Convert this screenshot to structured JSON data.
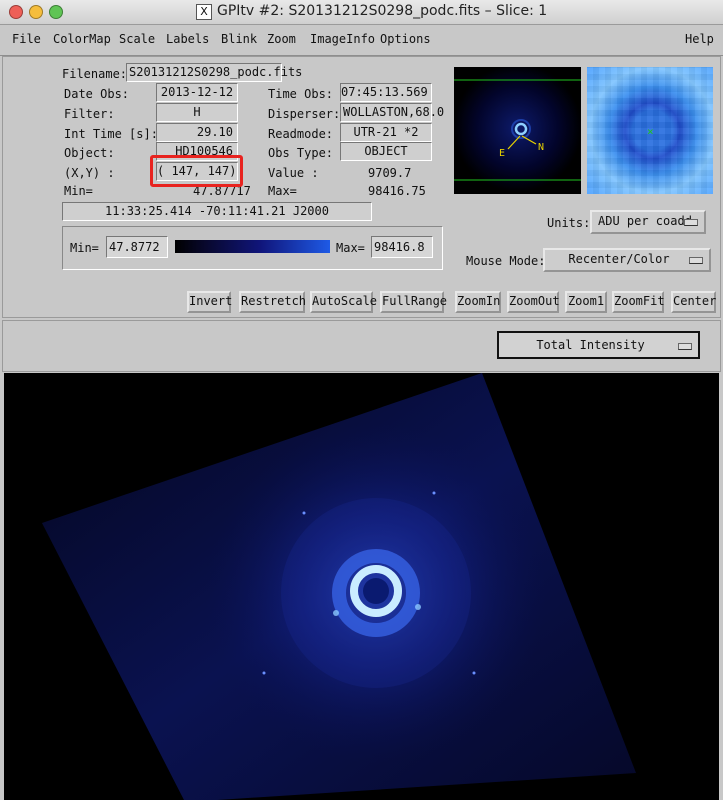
{
  "window": {
    "title": "GPItv #2:  S20131212S0298_podc.fits –  Slice: 1",
    "x_glyph": "X"
  },
  "menu": [
    "File",
    "ColorMap",
    "Scale",
    "Labels",
    "Blink",
    "Zoom",
    "ImageInfo",
    "Options",
    "Help"
  ],
  "info": {
    "filename_label": "Filename:",
    "filename": "S20131212S0298_podc.fits",
    "date_label": "Date Obs:",
    "date": "2013-12-12",
    "filter_label": "Filter:",
    "filter": "H",
    "inttime_label": "Int Time [s]:",
    "inttime": "29.10",
    "object_label": "Object:",
    "object": "HD100546",
    "xy_label": "(X,Y) :",
    "xy": "( 147, 147)",
    "min_label": "Min=",
    "min": "47.87717",
    "timeobs_label": "Time Obs:",
    "timeobs": "07:45:13.569",
    "disperser_label": "Disperser:",
    "disperser": "WOLLASTON,68.0",
    "readmode_label": "Readmode:",
    "readmode": "UTR-21 *2",
    "obstype_label": "Obs Type:",
    "obstype": "OBJECT",
    "value_label": "Value :",
    "value": "9709.7",
    "max_label": "Max=",
    "max": "98416.75",
    "coords": "11:33:25.414  -70:11:41.21  J2000"
  },
  "scale": {
    "min_label": "Min=",
    "min_value": "47.8772",
    "max_label": "Max=",
    "max_value": "98416.8"
  },
  "compass": {
    "east": "E",
    "north": "N"
  },
  "units": {
    "label": "Units:",
    "value": "ADU per coadd"
  },
  "mouse_mode": {
    "label": "Mouse Mode:",
    "value": "Recenter/Color"
  },
  "buttons": [
    "Invert",
    "Restretch",
    "AutoScale",
    "FullRange",
    "ZoomIn",
    "ZoomOut",
    "Zoom1",
    "ZoomFit",
    "Center"
  ],
  "display_mode": "Total Intensity",
  "colors": {
    "highlight": "#e8231f",
    "image_blue": "#2a4fe0"
  }
}
